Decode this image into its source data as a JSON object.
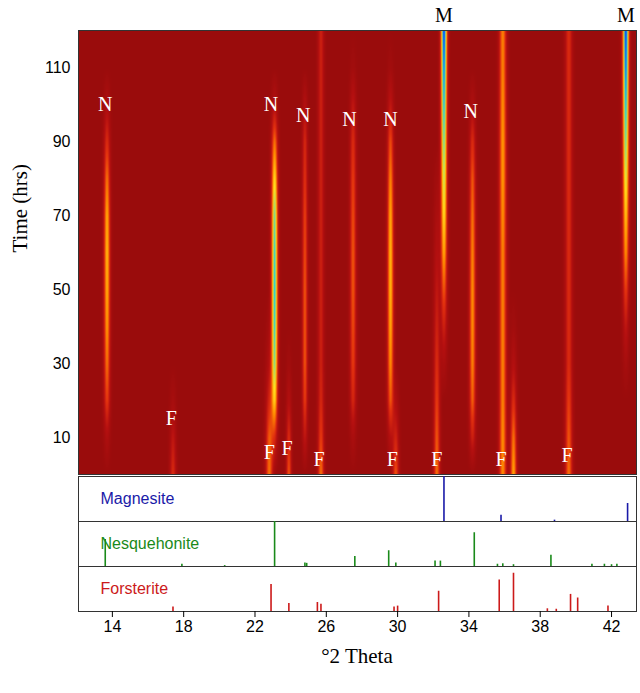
{
  "chart_data": [
    {
      "type": "heatmap",
      "ylabel": "Time (hrs)",
      "xlim": [
        12.1,
        43.4
      ],
      "ylim": [
        0,
        120
      ],
      "yticks": [
        10,
        30,
        50,
        70,
        90,
        110
      ],
      "tick_labels": "y",
      "zlim": [
        0,
        100
      ],
      "colors": [
        "#9a0c0c",
        "#b51010",
        "#e2300f",
        "#ff8c00",
        "#ffe020",
        "#30d0d0",
        "#0040ff"
      ],
      "times": [
        0,
        10,
        20,
        30,
        40,
        50,
        60,
        70,
        80,
        90,
        100,
        110,
        120
      ],
      "peaks": [
        {
          "position": 13.7,
          "fwhm": 0.3,
          "intensities": [
            0,
            12,
            35,
            45,
            52,
            56,
            58,
            55,
            45,
            30,
            12,
            0,
            0
          ]
        },
        {
          "position": 17.4,
          "fwhm": 0.3,
          "intensities": [
            30,
            20,
            8,
            0,
            0,
            0,
            0,
            0,
            0,
            0,
            0,
            0,
            0
          ]
        },
        {
          "position": 22.8,
          "fwhm": 0.35,
          "intensities": [
            45,
            40,
            25,
            12,
            5,
            0,
            0,
            0,
            0,
            0,
            0,
            0,
            0
          ]
        },
        {
          "position": 23.1,
          "fwhm": 0.3,
          "intensities": [
            0,
            25,
            60,
            75,
            82,
            85,
            83,
            78,
            65,
            45,
            15,
            0,
            0
          ]
        },
        {
          "position": 23.9,
          "fwhm": 0.25,
          "intensities": [
            40,
            30,
            15,
            5,
            0,
            0,
            0,
            0,
            0,
            0,
            0,
            0,
            0
          ]
        },
        {
          "position": 24.8,
          "fwhm": 0.25,
          "intensities": [
            0,
            20,
            35,
            40,
            40,
            40,
            38,
            36,
            32,
            28,
            15,
            0,
            0
          ]
        },
        {
          "position": 25.7,
          "fwhm": 0.3,
          "intensities": [
            45,
            35,
            28,
            25,
            25,
            25,
            25,
            25,
            25,
            25,
            25,
            25,
            25
          ]
        },
        {
          "position": 27.5,
          "fwhm": 0.3,
          "intensities": [
            0,
            10,
            28,
            35,
            38,
            40,
            40,
            38,
            35,
            30,
            20,
            5,
            0
          ]
        },
        {
          "position": 29.6,
          "fwhm": 0.3,
          "intensities": [
            0,
            15,
            40,
            50,
            55,
            58,
            58,
            55,
            48,
            38,
            20,
            5,
            0
          ]
        },
        {
          "position": 29.9,
          "fwhm": 0.3,
          "intensities": [
            40,
            25,
            10,
            0,
            0,
            0,
            0,
            0,
            0,
            0,
            0,
            0,
            0
          ]
        },
        {
          "position": 32.2,
          "fwhm": 0.3,
          "intensities": [
            45,
            40,
            35,
            30,
            25,
            20,
            15,
            10,
            5,
            0,
            0,
            0,
            0
          ]
        },
        {
          "position": 32.6,
          "fwhm": 0.3,
          "intensities": [
            0,
            0,
            0,
            10,
            25,
            40,
            55,
            65,
            72,
            78,
            85,
            92,
            100
          ]
        },
        {
          "position": 34.2,
          "fwhm": 0.3,
          "intensities": [
            0,
            25,
            42,
            48,
            50,
            50,
            48,
            45,
            40,
            30,
            12,
            0,
            0
          ]
        },
        {
          "position": 35.9,
          "fwhm": 0.35,
          "intensities": [
            50,
            50,
            48,
            48,
            48,
            48,
            48,
            50,
            52,
            52,
            50,
            48,
            48
          ]
        },
        {
          "position": 36.5,
          "fwhm": 0.3,
          "intensities": [
            55,
            45,
            30,
            15,
            5,
            0,
            0,
            0,
            0,
            0,
            0,
            0,
            0
          ]
        },
        {
          "position": 39.6,
          "fwhm": 0.35,
          "intensities": [
            45,
            40,
            35,
            30,
            30,
            30,
            30,
            30,
            30,
            30,
            30,
            30,
            30
          ]
        },
        {
          "position": 42.8,
          "fwhm": 0.3,
          "intensities": [
            0,
            0,
            0,
            8,
            20,
            35,
            50,
            60,
            70,
            78,
            86,
            94,
            100
          ]
        }
      ],
      "annotations": [
        {
          "text": "N",
          "x": 13.6,
          "y": 100
        },
        {
          "text": "N",
          "x": 22.9,
          "y": 100
        },
        {
          "text": "N",
          "x": 24.7,
          "y": 97
        },
        {
          "text": "N",
          "x": 27.3,
          "y": 96
        },
        {
          "text": "N",
          "x": 29.6,
          "y": 96
        },
        {
          "text": "N",
          "x": 34.1,
          "y": 98
        },
        {
          "text": "F",
          "x": 17.3,
          "y": 15
        },
        {
          "text": "F",
          "x": 22.8,
          "y": 6
        },
        {
          "text": "F",
          "x": 23.8,
          "y": 7
        },
        {
          "text": "F",
          "x": 25.6,
          "y": 4
        },
        {
          "text": "F",
          "x": 29.7,
          "y": 4
        },
        {
          "text": "F",
          "x": 32.2,
          "y": 4
        },
        {
          "text": "F",
          "x": 35.8,
          "y": 4
        },
        {
          "text": "F",
          "x": 39.5,
          "y": 5
        },
        {
          "text": "M",
          "x": 32.6,
          "y": 124
        },
        {
          "text": "M",
          "x": 42.8,
          "y": 124
        }
      ]
    },
    {
      "type": "stick",
      "xlabel": "°2 Theta",
      "xlim": [
        12.1,
        43.4
      ],
      "xticks": [
        14,
        18,
        22,
        26,
        30,
        34,
        38,
        42
      ],
      "ylim": [
        0,
        100
      ],
      "tick_labels": "x",
      "series": [
        {
          "name": "Magnesite",
          "color": "#1a1aa8",
          "x": [
            32.6,
            35.8,
            38.8,
            42.9
          ],
          "values": [
            100,
            14,
            3,
            40
          ]
        },
        {
          "name": "Nesquehonite",
          "color": "#1a8a1a",
          "x": [
            13.6,
            17.9,
            20.3,
            23.1,
            24.8,
            24.9,
            27.6,
            29.5,
            29.9,
            32.1,
            32.4,
            34.3,
            35.6,
            35.9,
            36.5,
            38.6,
            40.9,
            41.6,
            42.0,
            42.3
          ],
          "values": [
            60,
            5,
            2,
            100,
            8,
            7,
            22,
            35,
            8,
            12,
            12,
            75,
            5,
            6,
            4,
            25,
            5,
            5,
            4,
            5
          ]
        },
        {
          "name": "Forsterite",
          "color": "#cc1a1a",
          "x": [
            17.4,
            22.9,
            23.9,
            25.5,
            25.7,
            29.8,
            30.0,
            32.3,
            35.7,
            36.5,
            38.4,
            38.9,
            39.7,
            40.1,
            41.8
          ],
          "values": [
            10,
            60,
            18,
            20,
            16,
            10,
            12,
            45,
            70,
            85,
            6,
            5,
            38,
            30,
            12
          ]
        }
      ]
    }
  ]
}
